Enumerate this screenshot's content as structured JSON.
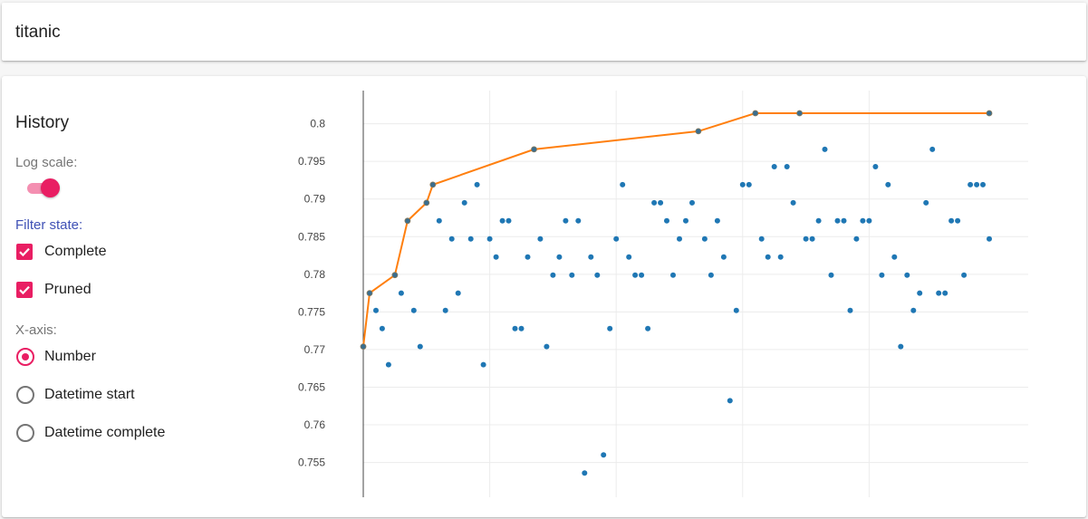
{
  "app": {
    "title": "titanic"
  },
  "sidebar": {
    "title": "History",
    "log_scale_label": "Log scale:",
    "log_scale_on": true,
    "filter_label": "Filter state:",
    "filters": [
      {
        "label": "Complete",
        "checked": true
      },
      {
        "label": "Pruned",
        "checked": true
      }
    ],
    "xaxis_label": "X-axis:",
    "xaxis_options": [
      {
        "label": "Number",
        "selected": true
      },
      {
        "label": "Datetime start",
        "selected": false
      },
      {
        "label": "Datetime complete",
        "selected": false
      }
    ]
  },
  "colors": {
    "accent": "#e91e63",
    "points": "#1f77b4",
    "best_line": "#ff7f0e"
  },
  "chart_data": {
    "type": "scatter",
    "xlim": [
      0,
      100
    ],
    "ylim": [
      0.7508,
      0.8055
    ],
    "yticks": [
      0.755,
      0.76,
      0.765,
      0.77,
      0.775,
      0.78,
      0.785,
      0.79,
      0.795,
      0.8
    ],
    "ytick_labels": [
      "0.755",
      "0.76",
      "0.765",
      "0.77",
      "0.775",
      "0.78",
      "0.785",
      "0.79",
      "0.795",
      "0.8"
    ],
    "xgrid": [
      0,
      20,
      40,
      60,
      80
    ],
    "grid": true,
    "series": [
      {
        "type": "scatter",
        "x": [
          0,
          1,
          2,
          3,
          4,
          5,
          6,
          7,
          8,
          9,
          10,
          11,
          12,
          13,
          14,
          15,
          16,
          17,
          18,
          19,
          20,
          21,
          22,
          23,
          24,
          25,
          26,
          27,
          28,
          29,
          30,
          31,
          32,
          33,
          34,
          35,
          36,
          37,
          38,
          39,
          40,
          41,
          42,
          43,
          44,
          45,
          46,
          47,
          48,
          49,
          50,
          51,
          52,
          53,
          54,
          55,
          56,
          57,
          58,
          59,
          60,
          61,
          62,
          63,
          64,
          65,
          66,
          67,
          68,
          69,
          70,
          71,
          72,
          73,
          74,
          75,
          76,
          77,
          78,
          79,
          80,
          81,
          82,
          83,
          84,
          85,
          86,
          87,
          88,
          89,
          90,
          91,
          92,
          93,
          94,
          95,
          96,
          97,
          98,
          99
        ],
        "y": [
          0.7704,
          0.7775,
          0.7752,
          0.7728,
          0.768,
          0.7799,
          0.7775,
          0.7871,
          0.7752,
          0.7704,
          0.7895,
          0.7919,
          0.7871,
          0.7752,
          0.7847,
          0.7775,
          0.7895,
          0.7847,
          0.7919,
          0.768,
          0.7847,
          0.7823,
          0.7871,
          0.7871,
          0.7728,
          0.7728,
          0.7823,
          0.7966,
          0.7847,
          0.7704,
          0.7799,
          0.7823,
          0.7871,
          0.7799,
          0.7871,
          0.7536,
          0.7823,
          0.7799,
          0.756,
          0.7728,
          0.7847,
          0.7919,
          0.7823,
          0.7799,
          0.7799,
          0.7728,
          0.7895,
          0.7895,
          0.7871,
          0.7799,
          0.7847,
          0.7871,
          0.7895,
          0.799,
          0.7847,
          0.7799,
          0.7871,
          0.7823,
          0.7632,
          0.7752,
          0.7919,
          0.7919,
          0.8014,
          0.7847,
          0.7823,
          0.7943,
          0.7823,
          0.7943,
          0.7895,
          0.8014,
          0.7847,
          0.7847,
          0.7871,
          0.7966,
          0.7799,
          0.7871,
          0.7871,
          0.7752,
          0.7847,
          0.7871,
          0.7871,
          0.7943,
          0.7799,
          0.7919,
          0.7823,
          0.7704,
          0.7799,
          0.7752,
          0.7775,
          0.7895,
          0.7966,
          0.7775,
          0.7775,
          0.7871,
          0.7871,
          0.7799,
          0.7919,
          0.7919,
          0.7919,
          0.7847
        ]
      },
      {
        "type": "line",
        "x": [
          0,
          1,
          5,
          7,
          10,
          11,
          27,
          53,
          62,
          69,
          99
        ],
        "y": [
          0.7704,
          0.7775,
          0.7799,
          0.7871,
          0.7895,
          0.7919,
          0.7966,
          0.799,
          0.8014,
          0.8014,
          0.8014
        ]
      }
    ]
  }
}
